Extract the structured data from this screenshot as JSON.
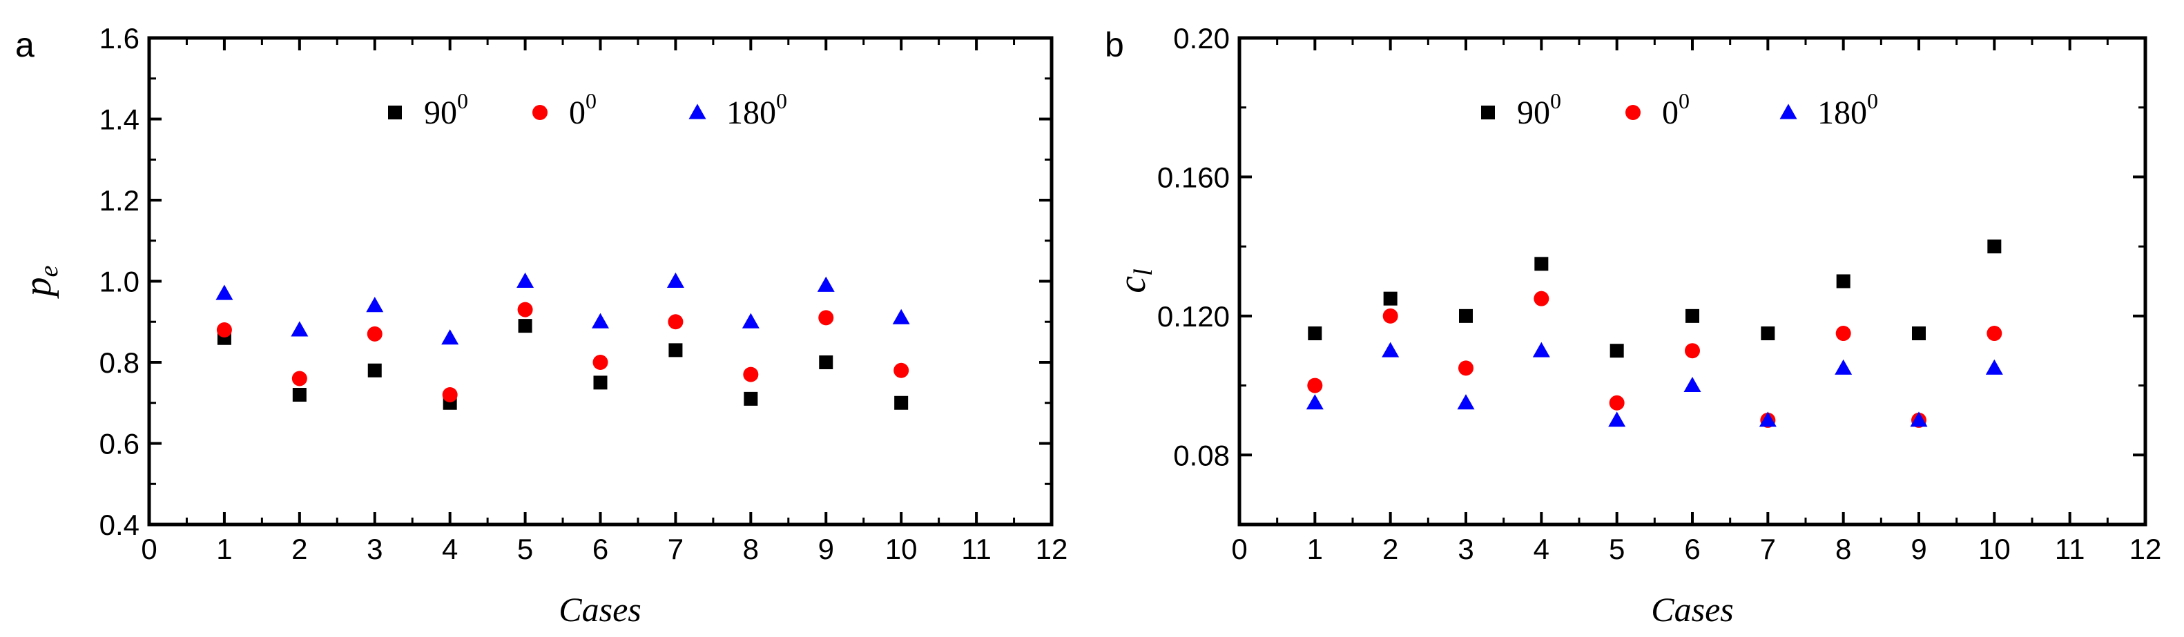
{
  "colors": {
    "series_90": "#000000",
    "series_0": "#ff0000",
    "series_180": "#0000ff",
    "axis": "#000000"
  },
  "chart_data": [
    {
      "panel_label": "a",
      "type": "scatter",
      "xlabel": "Cases",
      "ylabel": "p",
      "ylabel_subscript": "e",
      "xlim": [
        0,
        12
      ],
      "ylim": [
        0.4,
        1.6
      ],
      "xticks": [
        0,
        1,
        2,
        3,
        4,
        5,
        6,
        7,
        8,
        9,
        10,
        11,
        12
      ],
      "yticks": [
        0.4,
        0.6,
        0.8,
        1.0,
        1.2,
        1.4,
        1.6
      ],
      "ytick_labels": [
        "0.4",
        "0.6",
        "0.8",
        "1.0",
        "1.2",
        "1.4",
        "1.6"
      ],
      "x": [
        1,
        2,
        3,
        4,
        5,
        6,
        7,
        8,
        9,
        10
      ],
      "legend_position": "top-center",
      "grid": false,
      "series": [
        {
          "name": "90",
          "name_superscript": "0",
          "marker": "square",
          "color": "#000000",
          "values": [
            0.86,
            0.72,
            0.78,
            0.7,
            0.89,
            0.75,
            0.83,
            0.71,
            0.8,
            0.7
          ]
        },
        {
          "name": "0",
          "name_superscript": "0",
          "marker": "circle",
          "color": "#ff0000",
          "values": [
            0.88,
            0.76,
            0.87,
            0.72,
            0.93,
            0.8,
            0.9,
            0.77,
            0.91,
            0.78
          ]
        },
        {
          "name": "180",
          "name_superscript": "0",
          "marker": "triangle",
          "color": "#0000ff",
          "values": [
            0.97,
            0.88,
            0.94,
            0.86,
            1.0,
            0.9,
            1.0,
            0.9,
            0.99,
            0.91
          ]
        }
      ]
    },
    {
      "panel_label": "b",
      "type": "scatter",
      "xlabel": "Cases",
      "ylabel": "c",
      "ylabel_subscript": "l",
      "xlim": [
        0,
        12
      ],
      "ylim": [
        0.06,
        0.2
      ],
      "xticks": [
        0,
        1,
        2,
        3,
        4,
        5,
        6,
        7,
        8,
        9,
        10,
        11,
        12
      ],
      "yticks": [
        0.08,
        0.12,
        0.16,
        0.2
      ],
      "ytick_labels": [
        "0.08",
        "0.120",
        "0.160",
        "0.20"
      ],
      "x": [
        1,
        2,
        3,
        4,
        5,
        6,
        7,
        8,
        9,
        10
      ],
      "legend_position": "top-center",
      "grid": false,
      "series": [
        {
          "name": "90",
          "name_superscript": "0",
          "marker": "square",
          "color": "#000000",
          "values": [
            0.115,
            0.125,
            0.12,
            0.135,
            0.11,
            0.12,
            0.115,
            0.13,
            0.115,
            0.14
          ]
        },
        {
          "name": "0",
          "name_superscript": "0",
          "marker": "circle",
          "color": "#ff0000",
          "values": [
            0.1,
            0.12,
            0.105,
            0.125,
            0.095,
            0.11,
            0.09,
            0.115,
            0.09,
            0.115
          ]
        },
        {
          "name": "180",
          "name_superscript": "0",
          "marker": "triangle",
          "color": "#0000ff",
          "values": [
            0.095,
            0.11,
            0.095,
            0.11,
            0.09,
            0.1,
            0.09,
            0.105,
            0.09,
            0.105
          ]
        }
      ]
    }
  ]
}
